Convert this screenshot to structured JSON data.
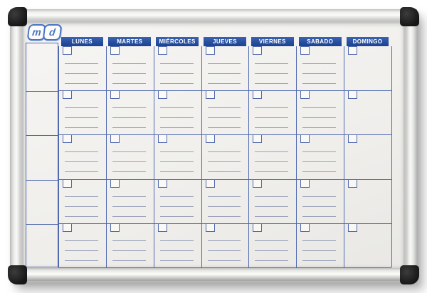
{
  "planner": {
    "brand_logo_text": "md",
    "day_headers": [
      "LUNES",
      "MARTES",
      "MIÉRCOLES",
      "JUEVES",
      "VIERNES",
      "SABADO",
      "DOMINGO"
    ],
    "week_rows": 5,
    "writing_lines_per_cell": 3,
    "note_column_cells": 5,
    "last_column_has_writing_lines": false,
    "colors": {
      "header_blue": "#27509f",
      "grid_blue": "#5069ae",
      "writing_line": "#98a0b8",
      "logo_blue": "#4a74c4",
      "board_surface": "#f2f1ee",
      "frame_silver": "#d3d3d1",
      "corner_cap_black": "#1f1f1f"
    }
  }
}
